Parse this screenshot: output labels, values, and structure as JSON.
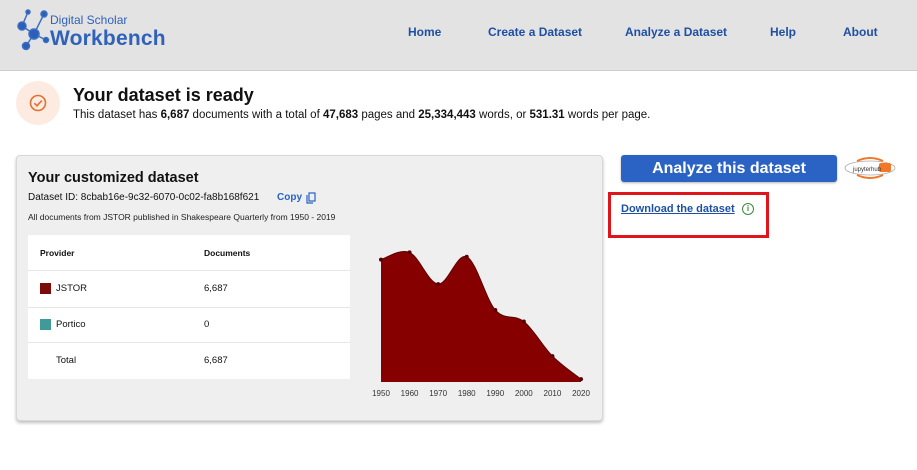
{
  "header": {
    "logo_top": "Digital Scholar",
    "logo_main": "Workbench",
    "nav": [
      {
        "label": "Home"
      },
      {
        "label": "Create a Dataset"
      },
      {
        "label": "Analyze a Dataset"
      },
      {
        "label": "Help"
      },
      {
        "label": "About"
      }
    ]
  },
  "ready": {
    "title": "Your dataset is ready",
    "prefix": "This dataset has ",
    "documents": "6,687",
    "mid1": " documents with a total of ",
    "pages": "47,683",
    "mid2": " pages and ",
    "words": "25,334,443",
    "mid3": " words, or ",
    "words_per_page": "531.31",
    "suffix": " words per page."
  },
  "card": {
    "title": "Your customized dataset",
    "dataset_id": "Dataset ID: 8cbab16e-9c32-6070-0c02-fa8b168f621",
    "copy_label": "Copy",
    "description": "All documents from JSTOR published in Shakespeare Quarterly from 1950 - 2019",
    "table": {
      "headers": [
        "Provider",
        "Documents"
      ],
      "rows": [
        {
          "provider": "JSTOR",
          "documents": "6,687",
          "color": "#7d0a0a"
        },
        {
          "provider": "Portico",
          "documents": "0",
          "color": "#3f9a9a"
        },
        {
          "provider": "Total",
          "documents": "6,687"
        }
      ]
    }
  },
  "chart_data": {
    "type": "area",
    "x": [
      1950,
      1960,
      1970,
      1980,
      1990,
      2000,
      2010,
      2020
    ],
    "series": [
      {
        "values": [
          85,
          90,
          68,
          87,
          50,
          42,
          18,
          2
        ],
        "color": "#870000"
      }
    ],
    "x_ticks": [
      "1950",
      "1960",
      "1970",
      "1980",
      "1990",
      "2000",
      "2010",
      "2020"
    ],
    "xlim": [
      1950,
      2020
    ],
    "ylim": [
      0,
      100
    ]
  },
  "actions": {
    "analyze_label": "Analyze this dataset",
    "download_label": "Download the dataset",
    "info_glyph": "i",
    "jupyter_label": "jupyterhub"
  },
  "colors": {
    "accent": "#2b63c4",
    "highlight": "#e0151b",
    "link": "#1f4fa3"
  }
}
